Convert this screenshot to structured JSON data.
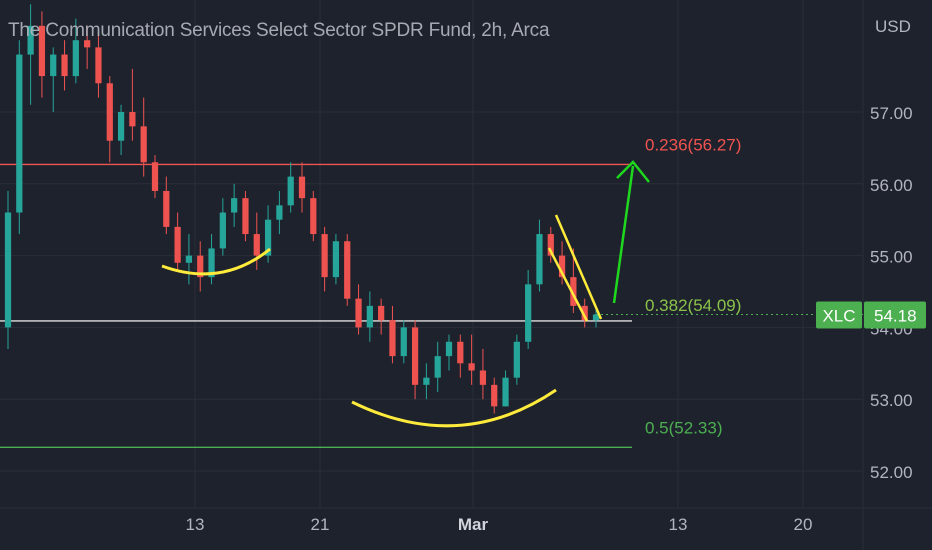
{
  "chart_title": "The Communication Services Select Sector SPDR Fund, 2h, Arca",
  "currency": "USD",
  "chart_data": {
    "type": "candlestick",
    "title": "The Communication Services Select Sector SPDR Fund, 2h, Arca",
    "y_axis_ticks": [
      "57.00",
      "56.00",
      "55.00",
      "54.00",
      "53.00",
      "52.00"
    ],
    "x_axis_ticks": [
      "13",
      "21",
      "Mar",
      "13",
      "20"
    ],
    "ylim": [
      51.8,
      58.5
    ],
    "series": [
      {
        "name": "XLC",
        "last_price": 54.18
      }
    ],
    "fib_levels": [
      {
        "ratio": "0.236",
        "price": 56.27,
        "label": "0.236(56.27)",
        "color": "#f05350"
      },
      {
        "ratio": "0.382",
        "price": 54.09,
        "label": "0.382(54.09)",
        "color": "#ffffff"
      },
      {
        "ratio": "0.5",
        "price": 52.33,
        "label": "0.5(52.33)",
        "color": "#4caf50"
      }
    ],
    "price_tag": {
      "symbol": "XLC",
      "value": "54.18"
    },
    "candles": [
      {
        "x": "Jan 31",
        "o": 54.0,
        "h": 55.9,
        "l": 53.7,
        "c": 55.6
      },
      {
        "x": "Feb 1",
        "o": 55.6,
        "h": 58.0,
        "l": 55.3,
        "c": 57.8
      },
      {
        "x": "Feb 1",
        "o": 57.8,
        "h": 58.5,
        "l": 57.1,
        "c": 58.2
      },
      {
        "x": "Feb 2",
        "o": 58.2,
        "h": 58.4,
        "l": 57.2,
        "c": 57.5
      },
      {
        "x": "Feb 2",
        "o": 57.5,
        "h": 57.9,
        "l": 57.0,
        "c": 57.8
      },
      {
        "x": "Feb 3",
        "o": 57.8,
        "h": 58.0,
        "l": 57.3,
        "c": 57.5
      },
      {
        "x": "Feb 3",
        "o": 57.5,
        "h": 58.3,
        "l": 57.4,
        "c": 58.0
      },
      {
        "x": "Feb 4",
        "o": 58.0,
        "h": 58.2,
        "l": 57.6,
        "c": 57.9
      },
      {
        "x": "Feb 7",
        "o": 57.9,
        "h": 58.1,
        "l": 57.2,
        "c": 57.4
      },
      {
        "x": "Feb 7",
        "o": 57.4,
        "h": 57.5,
        "l": 56.3,
        "c": 56.6
      },
      {
        "x": "Feb 8",
        "o": 56.6,
        "h": 57.1,
        "l": 56.4,
        "c": 57.0
      },
      {
        "x": "Feb 8",
        "o": 57.0,
        "h": 57.6,
        "l": 56.6,
        "c": 56.8
      },
      {
        "x": "Feb 9",
        "o": 56.8,
        "h": 57.2,
        "l": 56.1,
        "c": 56.3
      },
      {
        "x": "Feb 9",
        "o": 56.3,
        "h": 56.4,
        "l": 55.8,
        "c": 55.9
      },
      {
        "x": "Feb 10",
        "o": 55.9,
        "h": 56.1,
        "l": 55.3,
        "c": 55.4
      },
      {
        "x": "Feb 10",
        "o": 55.4,
        "h": 55.6,
        "l": 54.8,
        "c": 54.9
      },
      {
        "x": "Feb 11",
        "o": 54.9,
        "h": 55.3,
        "l": 54.6,
        "c": 55.0
      },
      {
        "x": "Feb 11",
        "o": 55.0,
        "h": 55.2,
        "l": 54.5,
        "c": 54.7
      },
      {
        "x": "Feb 14",
        "o": 54.7,
        "h": 55.3,
        "l": 54.6,
        "c": 55.1
      },
      {
        "x": "Feb 14",
        "o": 55.1,
        "h": 55.8,
        "l": 55.0,
        "c": 55.6
      },
      {
        "x": "Feb 15",
        "o": 55.6,
        "h": 56.0,
        "l": 55.4,
        "c": 55.8
      },
      {
        "x": "Feb 15",
        "o": 55.8,
        "h": 55.9,
        "l": 55.2,
        "c": 55.3
      },
      {
        "x": "Feb 16",
        "o": 55.3,
        "h": 55.6,
        "l": 54.8,
        "c": 55.0
      },
      {
        "x": "Feb 16",
        "o": 55.0,
        "h": 55.7,
        "l": 54.9,
        "c": 55.5
      },
      {
        "x": "Feb 17",
        "o": 55.5,
        "h": 55.9,
        "l": 55.3,
        "c": 55.7
      },
      {
        "x": "Feb 17",
        "o": 55.7,
        "h": 56.3,
        "l": 55.6,
        "c": 56.1
      },
      {
        "x": "Feb 18",
        "o": 56.1,
        "h": 56.3,
        "l": 55.6,
        "c": 55.8
      },
      {
        "x": "Feb 18",
        "o": 55.8,
        "h": 55.9,
        "l": 55.2,
        "c": 55.3
      },
      {
        "x": "Feb 22",
        "o": 55.3,
        "h": 55.4,
        "l": 54.5,
        "c": 54.7
      },
      {
        "x": "Feb 22",
        "o": 54.7,
        "h": 55.3,
        "l": 54.6,
        "c": 55.2
      },
      {
        "x": "Feb 23",
        "o": 55.2,
        "h": 55.3,
        "l": 54.3,
        "c": 54.4
      },
      {
        "x": "Feb 23",
        "o": 54.4,
        "h": 54.6,
        "l": 53.9,
        "c": 54.0
      },
      {
        "x": "Feb 24",
        "o": 54.0,
        "h": 54.5,
        "l": 53.8,
        "c": 54.3
      },
      {
        "x": "Feb 24",
        "o": 54.3,
        "h": 54.4,
        "l": 53.9,
        "c": 54.1
      },
      {
        "x": "Feb 25",
        "o": 54.1,
        "h": 54.3,
        "l": 53.5,
        "c": 53.6
      },
      {
        "x": "Feb 25",
        "o": 53.6,
        "h": 54.1,
        "l": 53.5,
        "c": 54.0
      },
      {
        "x": "Feb 28",
        "o": 54.0,
        "h": 54.1,
        "l": 53.0,
        "c": 53.2
      },
      {
        "x": "Feb 28",
        "o": 53.2,
        "h": 53.5,
        "l": 53.0,
        "c": 53.3
      },
      {
        "x": "Mar 1",
        "o": 53.3,
        "h": 53.8,
        "l": 53.1,
        "c": 53.6
      },
      {
        "x": "Mar 1",
        "o": 53.6,
        "h": 53.9,
        "l": 53.4,
        "c": 53.8
      },
      {
        "x": "Mar 2",
        "o": 53.8,
        "h": 53.9,
        "l": 53.3,
        "c": 53.5
      },
      {
        "x": "Mar 2",
        "o": 53.5,
        "h": 53.9,
        "l": 53.2,
        "c": 53.4
      },
      {
        "x": "Mar 3",
        "o": 53.4,
        "h": 53.7,
        "l": 53.0,
        "c": 53.2
      },
      {
        "x": "Mar 3",
        "o": 53.2,
        "h": 53.3,
        "l": 52.8,
        "c": 52.9
      },
      {
        "x": "Mar 4",
        "o": 52.9,
        "h": 53.4,
        "l": 52.9,
        "c": 53.3
      },
      {
        "x": "Mar 4",
        "o": 53.3,
        "h": 53.9,
        "l": 53.2,
        "c": 53.8
      },
      {
        "x": "Mar 7",
        "o": 53.8,
        "h": 54.8,
        "l": 53.7,
        "c": 54.6
      },
      {
        "x": "Mar 8",
        "o": 54.6,
        "h": 55.5,
        "l": 54.5,
        "c": 55.3
      },
      {
        "x": "Mar 8",
        "o": 55.3,
        "h": 55.4,
        "l": 54.9,
        "c": 55.0
      },
      {
        "x": "Mar 9",
        "o": 55.0,
        "h": 55.2,
        "l": 54.6,
        "c": 54.7
      },
      {
        "x": "Mar 9",
        "o": 54.7,
        "h": 55.1,
        "l": 54.2,
        "c": 54.3
      },
      {
        "x": "Mar 10",
        "o": 54.3,
        "h": 54.4,
        "l": 54.0,
        "c": 54.1
      },
      {
        "x": "Mar 10",
        "o": 54.1,
        "h": 54.3,
        "l": 54.0,
        "c": 54.18
      }
    ]
  },
  "colors": {
    "background": "#1e222d",
    "up": "#26a69a",
    "down": "#ef5350",
    "axis_text": "#b2b5be",
    "annotation_yellow": "#ffeb3b",
    "annotation_green": "#1ed81e",
    "price_tag_bg": "#4caf50"
  }
}
